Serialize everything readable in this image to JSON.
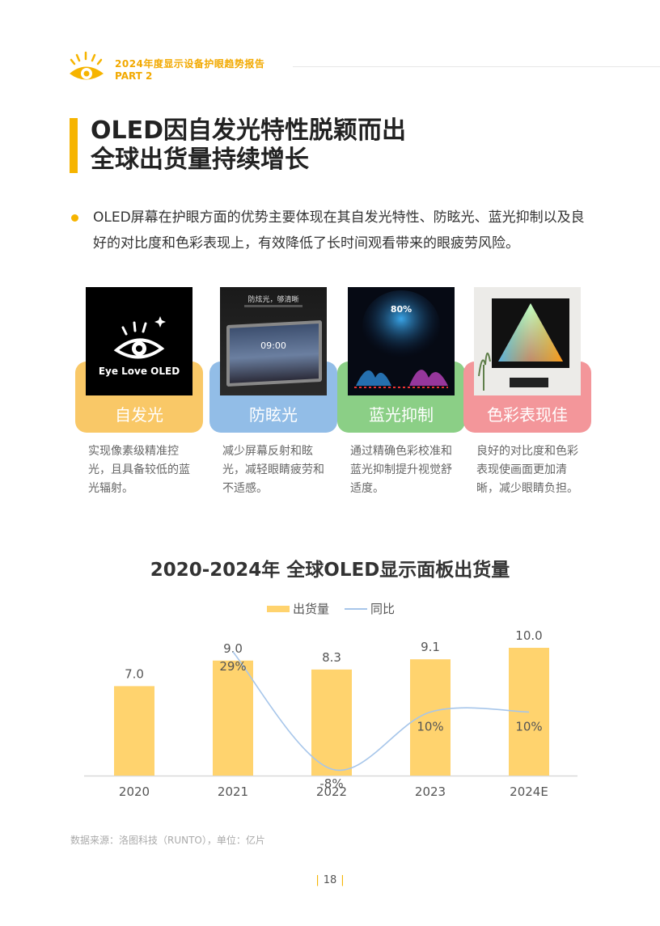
{
  "header": {
    "title": "2024年度显示设备护眼趋势报告",
    "part": "PART 2"
  },
  "section": {
    "title_line1": "OLED因自发光特性脱颖而出",
    "title_line2": "全球出货量持续增长"
  },
  "bullet": {
    "text": "OLED屏幕在护眼方面的优势主要体现在其自发光特性、防眩光、蓝光抑制以及良好的对比度和色彩表现上，有效降低了长时间观看带来的眼疲劳风险。"
  },
  "features": [
    {
      "label": "自发光",
      "color": "#f9c867",
      "image_caption": "Eye Love OLED",
      "desc": "实现像素级精准控光，且具备较低的蓝光辐射。"
    },
    {
      "label": "防眩光",
      "color": "#92bde7",
      "image_caption": "防炫光，够清晰",
      "image_time": "09:00",
      "desc": "减少屏幕反射和眩光，减轻眼睛疲劳和不适感。"
    },
    {
      "label": "蓝光抑制",
      "color": "#8bcf86",
      "image_percent": "80%",
      "desc": "通过精确色彩校准和蓝光抑制提升视觉舒适度。"
    },
    {
      "label": "色彩表现佳",
      "color": "#f3969a",
      "desc": "良好的对比度和色彩表现使画面更加清晰，减少眼睛负担。"
    }
  ],
  "chart_data": {
    "type": "bar",
    "title": "2020-2024年 全球OLED显示面板出货量",
    "categories": [
      "2020",
      "2021",
      "2022",
      "2023",
      "2024E"
    ],
    "series": [
      {
        "name": "出货量",
        "kind": "bar",
        "values": [
          7.0,
          9.0,
          8.3,
          9.1,
          10.0
        ],
        "labels": [
          "7.0",
          "9.0",
          "8.3",
          "9.1",
          "10.0"
        ],
        "color": "#ffd36e"
      },
      {
        "name": "同比",
        "kind": "line",
        "values": [
          null,
          29,
          -8,
          10,
          10
        ],
        "labels": [
          "",
          "29%",
          "-8%",
          "10%",
          "10%"
        ],
        "color": "#a7c6ea"
      }
    ],
    "legend_position": "top-center",
    "grid": false
  },
  "footer": {
    "source": "数据来源：洛图科技（RUNTO），单位：亿片",
    "page": "18"
  }
}
